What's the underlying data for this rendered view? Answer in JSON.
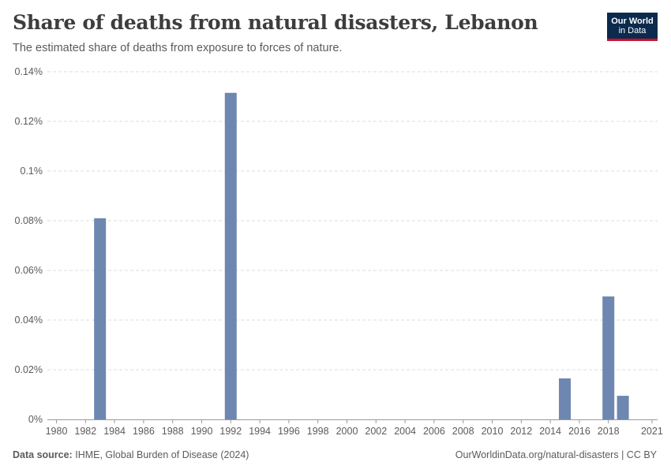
{
  "header": {
    "title": "Share of deaths from natural disasters, Lebanon",
    "subtitle": "The estimated share of deaths from exposure to forces of nature."
  },
  "logo": {
    "line1": "Our World",
    "line2": "in Data"
  },
  "footer": {
    "source_label": "Data source:",
    "source_text": "IHME, Global Burden of Disease (2024)",
    "credit": "OurWorldinData.org/natural-disasters | CC BY"
  },
  "colors": {
    "bar": "#6d87b0",
    "grid": "#dddddd",
    "axis": "#999999",
    "logo_bg": "#0b2a4e",
    "logo_accent": "#c8102e"
  },
  "chart_data": {
    "type": "bar",
    "title": "Share of deaths from natural disasters, Lebanon",
    "xlabel": "",
    "ylabel": "",
    "xlim": [
      1980,
      2021
    ],
    "ylim": [
      0,
      0.14
    ],
    "y_ticks": [
      0,
      0.02,
      0.04,
      0.06,
      0.08,
      0.1,
      0.12,
      0.14
    ],
    "y_tick_labels": [
      "0%",
      "0.02%",
      "0.04%",
      "0.06%",
      "0.08%",
      "0.1%",
      "0.12%",
      "0.14%"
    ],
    "x_ticks": [
      1980,
      1982,
      1984,
      1986,
      1988,
      1990,
      1992,
      1994,
      1996,
      1998,
      2000,
      2002,
      2004,
      2006,
      2008,
      2010,
      2012,
      2014,
      2016,
      2018,
      2021
    ],
    "x_tick_labels": [
      "1980",
      "1982",
      "1984",
      "1986",
      "1988",
      "1990",
      "1992",
      "1994",
      "1996",
      "1998",
      "2000",
      "2002",
      "2004",
      "2006",
      "2008",
      "2010",
      "2012",
      "2014",
      "2016",
      "2018",
      "2021"
    ],
    "grid": true,
    "series": [
      {
        "name": "Share of deaths from natural disasters",
        "points": [
          {
            "year": 1983,
            "value": 0.081
          },
          {
            "year": 1992,
            "value": 0.1315
          },
          {
            "year": 2015,
            "value": 0.0165
          },
          {
            "year": 2018,
            "value": 0.0495
          },
          {
            "year": 2019,
            "value": 0.0095
          }
        ]
      }
    ]
  }
}
